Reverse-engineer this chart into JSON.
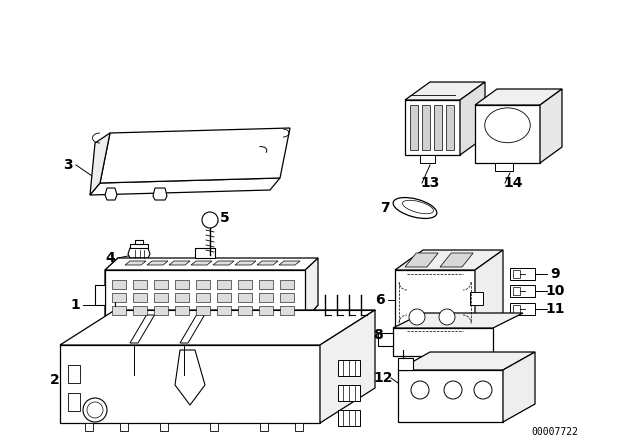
{
  "background_color": "#ffffff",
  "line_color": "#000000",
  "part_number": "00007722",
  "figsize": [
    6.4,
    4.48
  ],
  "dpi": 100
}
